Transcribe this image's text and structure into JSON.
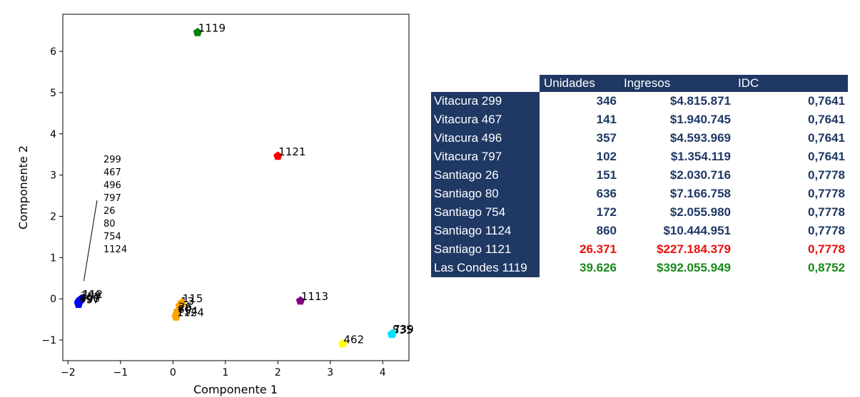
{
  "colors": {
    "header_bg": "#1f3864",
    "header_text": "#ffffff",
    "value_text": "#1f3864",
    "red": "#e8100b",
    "green": "#178a17"
  },
  "chart_data": {
    "type": "scatter",
    "xlabel": "Componente 1",
    "ylabel": "Componente 2",
    "xlim": [
      -2.1,
      4.5
    ],
    "ylim": [
      -1.5,
      6.9
    ],
    "xticks": [
      -2,
      -1,
      0,
      1,
      2,
      3,
      4
    ],
    "xtick_labels": [
      "−2",
      "−1",
      "0",
      "1",
      "2",
      "3",
      "4"
    ],
    "yticks": [
      -1,
      0,
      1,
      2,
      3,
      4,
      5,
      6
    ],
    "ytick_labels": [
      "−1",
      "0",
      "1",
      "2",
      "3",
      "4",
      "5",
      "6"
    ],
    "grid": false,
    "marker": "pentagon",
    "points": [
      {
        "x": 0.47,
        "y": 6.46,
        "color": "#008000",
        "label": "1119"
      },
      {
        "x": 2.0,
        "y": 3.46,
        "color": "#ff0000",
        "label": "1121"
      },
      {
        "x": 2.43,
        "y": -0.05,
        "color": "#800080",
        "label": "1113"
      },
      {
        "x": 3.24,
        "y": -1.09,
        "color": "#ffff00",
        "label": "462"
      },
      {
        "x": 4.17,
        "y": -0.86,
        "color": "#00e5ff",
        "label": "835"
      },
      {
        "x": 4.19,
        "y": -0.84,
        "color": "#00e5ff",
        "label": "739"
      },
      {
        "x": -1.74,
        "y": 0.0,
        "color": "#0000ff",
        "label": "112"
      },
      {
        "x": -1.77,
        "y": -0.03,
        "color": "#0000ff",
        "label": "299"
      },
      {
        "x": -1.79,
        "y": -0.07,
        "color": "#0000ff",
        "label": "467"
      },
      {
        "x": -1.8,
        "y": -0.1,
        "color": "#0000ff",
        "label": "496"
      },
      {
        "x": -1.8,
        "y": -0.13,
        "color": "#0000ff",
        "label": "797"
      },
      {
        "x": 0.13,
        "y": -0.17,
        "color": "#ffa500",
        "label": "13"
      },
      {
        "x": 0.17,
        "y": -0.1,
        "color": "#ffa500",
        "label": "115"
      },
      {
        "x": 0.09,
        "y": -0.3,
        "color": "#ffa500",
        "label": "26"
      },
      {
        "x": 0.08,
        "y": -0.36,
        "color": "#ffa500",
        "label": "80"
      },
      {
        "x": 0.07,
        "y": -0.4,
        "color": "#ffa500",
        "label": "754"
      },
      {
        "x": 0.06,
        "y": -0.44,
        "color": "#ffa500",
        "label": "1124"
      }
    ],
    "annotation": {
      "lines": [
        "299",
        "467",
        "496",
        "797",
        "26",
        "80",
        "754",
        "1124"
      ],
      "arrow_to": {
        "x": -1.7,
        "y": 0.43
      }
    }
  },
  "table": {
    "headers": [
      "Unidades",
      "Ingresos",
      "IDC"
    ],
    "rows": [
      {
        "name": "Vitacura 299",
        "unidades": "346",
        "ingresos": "$4.815.871",
        "idc": "0,7641",
        "highlight": ""
      },
      {
        "name": "Vitacura 467",
        "unidades": "141",
        "ingresos": "$1.940.745",
        "idc": "0,7641",
        "highlight": ""
      },
      {
        "name": "Vitacura 496",
        "unidades": "357",
        "ingresos": "$4.593.969",
        "idc": "0,7641",
        "highlight": ""
      },
      {
        "name": "Vitacura 797",
        "unidades": "102",
        "ingresos": "$1.354.119",
        "idc": "0,7641",
        "highlight": ""
      },
      {
        "name": "Santiago 26",
        "unidades": "151",
        "ingresos": "$2.030.716",
        "idc": "0,7778",
        "highlight": ""
      },
      {
        "name": "Santiago 80",
        "unidades": "636",
        "ingresos": "$7.166.758",
        "idc": "0,7778",
        "highlight": ""
      },
      {
        "name": "Santiago 754",
        "unidades": "172",
        "ingresos": "$2.055.980",
        "idc": "0,7778",
        "highlight": ""
      },
      {
        "name": "Santiago 1124",
        "unidades": "860",
        "ingresos": "$10.444.951",
        "idc": "0,7778",
        "highlight": ""
      },
      {
        "name": "Santiago 1121",
        "unidades": "26.371",
        "ingresos": "$227.184.379",
        "idc": "0,7778",
        "highlight": "red"
      },
      {
        "name": "Las Condes 1119",
        "unidades": "39.626",
        "ingresos": "$392.055.949",
        "idc": "0,8752",
        "highlight": "green"
      }
    ]
  }
}
